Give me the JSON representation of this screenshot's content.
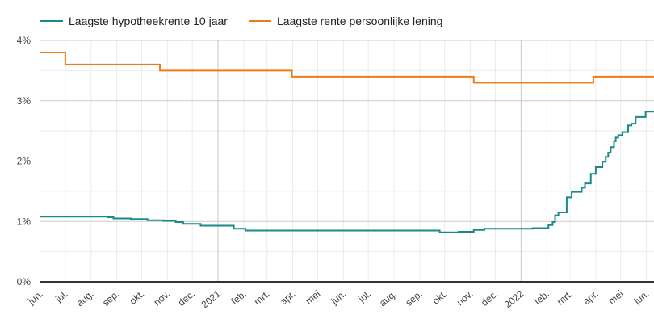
{
  "chart_data": {
    "type": "line",
    "title": "",
    "xlabel": "",
    "ylabel": "",
    "ylim": [
      0,
      4
    ],
    "y_ticks": [
      "0%",
      "1%",
      "2%",
      "3%",
      "4%"
    ],
    "x_range": [
      "2020-06-01",
      "2022-06-10"
    ],
    "x_tick_labels": [
      "jun.",
      "jul.",
      "aug.",
      "sep.",
      "okt.",
      "nov.",
      "dec.",
      "2021",
      "feb.",
      "mrt.",
      "apr.",
      "mei",
      "jun.",
      "jul.",
      "aug.",
      "sep.",
      "okt.",
      "nov.",
      "dec.",
      "2022",
      "feb.",
      "mrt.",
      "apr.",
      "mei",
      "jun."
    ],
    "grid": true,
    "legend_position": "top-left",
    "step": true,
    "series": [
      {
        "name": "Laagste hypotheekrente 10 jaar",
        "color": "#1a8a87",
        "points": [
          [
            "2020-06-01",
            1.08
          ],
          [
            "2020-08-21",
            1.07
          ],
          [
            "2020-08-28",
            1.05
          ],
          [
            "2020-09-18",
            1.04
          ],
          [
            "2020-10-08",
            1.02
          ],
          [
            "2020-10-27",
            1.01
          ],
          [
            "2020-11-11",
            0.99
          ],
          [
            "2020-11-20",
            0.96
          ],
          [
            "2020-12-11",
            0.93
          ],
          [
            "2021-01-20",
            0.88
          ],
          [
            "2021-02-03",
            0.85
          ],
          [
            "2021-09-25",
            0.82
          ],
          [
            "2021-10-18",
            0.83
          ],
          [
            "2021-11-05",
            0.86
          ],
          [
            "2021-11-18",
            0.88
          ],
          [
            "2022-01-15",
            0.89
          ],
          [
            "2022-02-03",
            0.94
          ],
          [
            "2022-02-08",
            0.99
          ],
          [
            "2022-02-11",
            1.1
          ],
          [
            "2022-02-15",
            1.15
          ],
          [
            "2022-02-25",
            1.4
          ],
          [
            "2022-03-03",
            1.49
          ],
          [
            "2022-03-15",
            1.56
          ],
          [
            "2022-03-19",
            1.63
          ],
          [
            "2022-03-26",
            1.79
          ],
          [
            "2022-04-01",
            1.9
          ],
          [
            "2022-04-09",
            1.99
          ],
          [
            "2022-04-13",
            2.07
          ],
          [
            "2022-04-16",
            2.14
          ],
          [
            "2022-04-19",
            2.23
          ],
          [
            "2022-04-23",
            2.33
          ],
          [
            "2022-04-25",
            2.39
          ],
          [
            "2022-04-28",
            2.43
          ],
          [
            "2022-05-03",
            2.48
          ],
          [
            "2022-05-10",
            2.59
          ],
          [
            "2022-05-14",
            2.62
          ],
          [
            "2022-05-19",
            2.73
          ],
          [
            "2022-05-31",
            2.82
          ],
          [
            "2022-06-10",
            2.82
          ]
        ]
      },
      {
        "name": "Laagste rente persoonlijke lening",
        "color": "#f07a14",
        "points": [
          [
            "2020-06-01",
            3.8
          ],
          [
            "2020-07-01",
            3.6
          ],
          [
            "2020-10-23",
            3.5
          ],
          [
            "2021-03-31",
            3.4
          ],
          [
            "2021-11-05",
            3.3
          ],
          [
            "2022-03-29",
            3.4
          ],
          [
            "2022-06-10",
            3.4
          ]
        ]
      }
    ]
  }
}
